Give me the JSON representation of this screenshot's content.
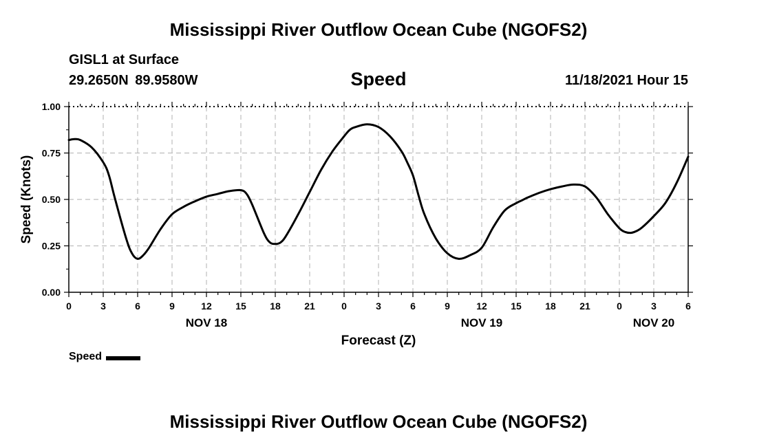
{
  "header": {
    "title": "Mississippi River Outflow Ocean Cube (NGOFS2)",
    "station": "GISL1 at Surface",
    "coordinates": "29.2650N 89.9580W",
    "plot_title": "Speed",
    "issued": "11/18/2021 Hour 15"
  },
  "legend": {
    "label": "Speed"
  },
  "footer": {
    "title": "Mississippi River Outflow Ocean Cube (NGOFS2)"
  },
  "chart_data": {
    "type": "line",
    "xlabel": "Forecast (Z)",
    "ylabel": "Speed (Knots)",
    "x_unit": "hours from NOV 18 00Z",
    "xlim": [
      0,
      54
    ],
    "ylim": [
      0,
      1
    ],
    "grid": true,
    "legend_position": "bottom-left",
    "line_color": "#000000",
    "x_ticks": [
      0,
      3,
      6,
      9,
      12,
      15,
      18,
      21,
      24,
      27,
      30,
      33,
      36,
      39,
      42,
      45,
      48,
      51,
      54
    ],
    "x_tick_labels": [
      "0",
      "3",
      "6",
      "9",
      "12",
      "15",
      "18",
      "21",
      "0",
      "3",
      "6",
      "9",
      "12",
      "15",
      "18",
      "21",
      "0",
      "3",
      "6"
    ],
    "y_ticks": [
      0,
      0.25,
      0.5,
      0.75,
      1.0
    ],
    "y_tick_labels": [
      "0.00",
      "0.25",
      "0.50",
      "0.75",
      "1.00"
    ],
    "day_labels": [
      {
        "x": 12,
        "text": "NOV 18"
      },
      {
        "x": 36,
        "text": "NOV 19"
      },
      {
        "x": 51,
        "text": "NOV 20"
      }
    ],
    "series": [
      {
        "x": [
          0,
          0.5,
          1,
          2,
          3,
          3.5,
          4,
          5,
          5.5,
          6,
          6.5,
          7,
          8,
          9,
          10,
          11,
          12,
          13,
          14,
          15,
          15.5,
          16,
          17,
          17.5,
          18,
          18.5,
          19,
          20,
          21,
          22,
          23,
          24,
          24.5,
          25,
          26,
          27,
          28,
          29,
          29.5,
          30,
          30.5,
          31,
          32,
          33,
          34,
          35,
          36,
          37,
          38,
          39,
          39.5,
          40,
          41,
          42,
          43,
          44,
          45,
          46,
          47,
          48,
          48.5,
          49,
          49.5,
          50,
          51,
          52,
          53,
          54
        ],
        "y": [
          0.82,
          0.825,
          0.82,
          0.78,
          0.7,
          0.63,
          0.51,
          0.29,
          0.21,
          0.18,
          0.2,
          0.24,
          0.34,
          0.42,
          0.46,
          0.49,
          0.515,
          0.53,
          0.545,
          0.55,
          0.53,
          0.47,
          0.32,
          0.27,
          0.26,
          0.27,
          0.31,
          0.42,
          0.54,
          0.66,
          0.76,
          0.84,
          0.875,
          0.89,
          0.905,
          0.89,
          0.84,
          0.76,
          0.7,
          0.63,
          0.52,
          0.42,
          0.29,
          0.21,
          0.18,
          0.2,
          0.24,
          0.35,
          0.44,
          0.48,
          0.495,
          0.51,
          0.535,
          0.555,
          0.57,
          0.58,
          0.57,
          0.51,
          0.42,
          0.345,
          0.325,
          0.32,
          0.33,
          0.35,
          0.41,
          0.48,
          0.59,
          0.73
        ]
      }
    ]
  }
}
